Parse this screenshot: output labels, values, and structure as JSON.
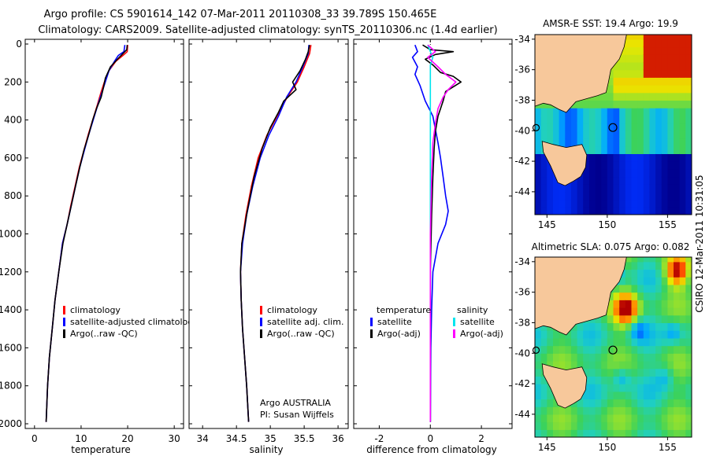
{
  "header": {
    "line1": "Argo profile: CS 5901614_142 07-Mar-2011 20110308_33 39.789S 150.465E",
    "line2": "Climatology: CARS2009. Satellite-adjusted climatology: synTS_20110306.nc (1.4d earlier)"
  },
  "side_label": "CSIRO 12-Mar-2011 10:31:05",
  "colors": {
    "climatology": "#ff0000",
    "satellite": "#0000ff",
    "argo": "#000000",
    "sat_diff": "#00e5ee",
    "argo_adj": "#ff00ff",
    "land": "#f7c89b"
  },
  "chart_data": [
    {
      "type": "line",
      "id": "temperature",
      "xlabel": "temperature",
      "xlim": [
        -2,
        32
      ],
      "ylim": [
        2050,
        0
      ],
      "xticks": [
        0,
        10,
        20,
        30
      ],
      "yticks": [
        0,
        200,
        400,
        600,
        800,
        1000,
        1200,
        1400,
        1600,
        1800,
        2000
      ],
      "legend": [
        {
          "label": "climatology",
          "color": "#ff0000"
        },
        {
          "label": "satellite-adjusted climatology",
          "color": "#0000ff"
        },
        {
          "label": "Argo(..raw -QC)",
          "color": "#000000"
        }
      ],
      "series": [
        {
          "name": "climatology",
          "color": "#ff0000",
          "points": [
            [
              20.0,
              5
            ],
            [
              19.9,
              40
            ],
            [
              19.0,
              60
            ],
            [
              17.5,
              90
            ],
            [
              16.0,
              140
            ],
            [
              15.0,
              200
            ],
            [
              14.2,
              260
            ],
            [
              13.5,
              320
            ],
            [
              12.5,
              400
            ],
            [
              11.5,
              480
            ],
            [
              10.6,
              560
            ],
            [
              9.6,
              650
            ],
            [
              8.7,
              750
            ],
            [
              7.8,
              850
            ],
            [
              7.0,
              950
            ],
            [
              6.0,
              1050
            ],
            [
              5.2,
              1200
            ],
            [
              4.4,
              1350
            ],
            [
              3.8,
              1500
            ],
            [
              3.2,
              1650
            ],
            [
              2.8,
              1800
            ],
            [
              2.5,
              1990
            ]
          ]
        },
        {
          "name": "satellite-adjusted climatology",
          "color": "#0000ff",
          "points": [
            [
              19.4,
              5
            ],
            [
              19.2,
              40
            ],
            [
              18.0,
              60
            ],
            [
              17.2,
              90
            ],
            [
              16.0,
              140
            ],
            [
              15.2,
              200
            ],
            [
              14.4,
              260
            ],
            [
              13.6,
              320
            ],
            [
              12.6,
              400
            ],
            [
              11.6,
              480
            ],
            [
              10.7,
              560
            ],
            [
              9.7,
              650
            ],
            [
              8.8,
              750
            ],
            [
              7.9,
              850
            ],
            [
              7.0,
              950
            ],
            [
              6.0,
              1050
            ],
            [
              5.2,
              1200
            ],
            [
              4.4,
              1350
            ],
            [
              3.8,
              1500
            ],
            [
              3.2,
              1650
            ],
            [
              2.8,
              1800
            ],
            [
              2.5,
              1990
            ]
          ]
        },
        {
          "name": "Argo(..raw -QC)",
          "color": "#000000",
          "points": [
            [
              19.9,
              5
            ],
            [
              19.8,
              30
            ],
            [
              19.0,
              50
            ],
            [
              17.8,
              80
            ],
            [
              16.3,
              120
            ],
            [
              15.2,
              180
            ],
            [
              14.8,
              230
            ],
            [
              14.3,
              280
            ],
            [
              13.3,
              340
            ],
            [
              12.5,
              400
            ],
            [
              11.6,
              480
            ],
            [
              10.6,
              560
            ],
            [
              9.7,
              650
            ],
            [
              8.8,
              750
            ],
            [
              7.9,
              850
            ],
            [
              7.0,
              950
            ],
            [
              6.1,
              1050
            ],
            [
              5.2,
              1200
            ],
            [
              4.4,
              1350
            ],
            [
              3.8,
              1500
            ],
            [
              3.2,
              1650
            ],
            [
              2.8,
              1800
            ],
            [
              2.5,
              1990
            ]
          ]
        }
      ]
    },
    {
      "type": "line",
      "id": "salinity",
      "xlabel": "salinity",
      "xlim": [
        33.8,
        36.15
      ],
      "ylim": [
        2050,
        0
      ],
      "xticks": [
        34,
        34.5,
        35,
        35.5,
        36
      ],
      "legend": [
        {
          "label": "climatology",
          "color": "#ff0000"
        },
        {
          "label": "satellite adj. clim.",
          "color": "#0000ff"
        },
        {
          "label": "Argo(..raw -QC)",
          "color": "#000000"
        }
      ],
      "annotation": [
        "Argo AUSTRALIA",
        "PI: Susan Wijffels"
      ],
      "series": [
        {
          "name": "climatology",
          "color": "#ff0000",
          "points": [
            [
              35.6,
              5
            ],
            [
              35.58,
              50
            ],
            [
              35.5,
              120
            ],
            [
              35.4,
              200
            ],
            [
              35.25,
              280
            ],
            [
              35.1,
              380
            ],
            [
              34.95,
              480
            ],
            [
              34.82,
              600
            ],
            [
              34.72,
              750
            ],
            [
              34.64,
              900
            ],
            [
              34.58,
              1050
            ],
            [
              34.56,
              1200
            ],
            [
              34.57,
              1350
            ],
            [
              34.59,
              1500
            ],
            [
              34.62,
              1650
            ],
            [
              34.65,
              1800
            ],
            [
              34.68,
              1990
            ]
          ]
        },
        {
          "name": "satellite adj. clim.",
          "color": "#0000ff",
          "points": [
            [
              35.57,
              5
            ],
            [
              35.56,
              50
            ],
            [
              35.48,
              120
            ],
            [
              35.38,
              200
            ],
            [
              35.24,
              280
            ],
            [
              35.12,
              380
            ],
            [
              34.98,
              480
            ],
            [
              34.85,
              600
            ],
            [
              34.74,
              750
            ],
            [
              34.65,
              900
            ],
            [
              34.59,
              1050
            ],
            [
              34.56,
              1200
            ],
            [
              34.57,
              1350
            ],
            [
              34.59,
              1500
            ],
            [
              34.62,
              1650
            ],
            [
              34.65,
              1800
            ],
            [
              34.68,
              1990
            ]
          ]
        },
        {
          "name": "Argo(..raw -QC)",
          "color": "#000000",
          "points": [
            [
              35.58,
              5
            ],
            [
              35.56,
              40
            ],
            [
              35.52,
              80
            ],
            [
              35.44,
              140
            ],
            [
              35.33,
              200
            ],
            [
              35.38,
              240
            ],
            [
              35.2,
              300
            ],
            [
              35.12,
              360
            ],
            [
              35.0,
              440
            ],
            [
              34.88,
              550
            ],
            [
              34.76,
              700
            ],
            [
              34.66,
              880
            ],
            [
              34.58,
              1050
            ],
            [
              34.56,
              1200
            ],
            [
              34.57,
              1350
            ],
            [
              34.59,
              1500
            ],
            [
              34.62,
              1650
            ],
            [
              34.65,
              1800
            ],
            [
              34.68,
              1990
            ]
          ]
        }
      ]
    },
    {
      "type": "line",
      "id": "difference",
      "xlabel": "difference from climatology",
      "xlim": [
        -3,
        3.2
      ],
      "ylim": [
        2050,
        0
      ],
      "xticks": [
        -2,
        0,
        2
      ],
      "legend_groups": [
        {
          "title": "temperature",
          "items": [
            {
              "label": "satellite",
              "color": "#0000ff"
            },
            {
              "label": "Argo(-adj)",
              "color": "#000000"
            }
          ]
        },
        {
          "title": "salinity",
          "items": [
            {
              "label": "satellite",
              "color": "#00e5ee"
            },
            {
              "label": "Argo(-adj)",
              "color": "#ff00ff"
            }
          ]
        }
      ],
      "series": [
        {
          "name": "temperature satellite",
          "color": "#0000ff",
          "points": [
            [
              -0.6,
              5
            ],
            [
              -0.5,
              40
            ],
            [
              -0.7,
              70
            ],
            [
              -0.5,
              120
            ],
            [
              -0.6,
              160
            ],
            [
              -0.4,
              220
            ],
            [
              -0.2,
              300
            ],
            [
              0.1,
              380
            ],
            [
              0.2,
              450
            ],
            [
              0.3,
              520
            ],
            [
              0.4,
              600
            ],
            [
              0.5,
              700
            ],
            [
              0.6,
              800
            ],
            [
              0.7,
              880
            ],
            [
              0.6,
              950
            ],
            [
              0.3,
              1050
            ],
            [
              0.1,
              1200
            ],
            [
              0.05,
              1400
            ],
            [
              0.02,
              1600
            ],
            [
              0.0,
              1990
            ]
          ]
        },
        {
          "name": "temperature Argo(-adj)",
          "color": "#000000",
          "points": [
            [
              -0.3,
              5
            ],
            [
              0.0,
              30
            ],
            [
              0.9,
              40
            ],
            [
              0.2,
              55
            ],
            [
              -0.2,
              80
            ],
            [
              0.1,
              110
            ],
            [
              0.4,
              150
            ],
            [
              0.9,
              170
            ],
            [
              1.2,
              200
            ],
            [
              0.6,
              250
            ],
            [
              0.5,
              300
            ],
            [
              0.3,
              380
            ],
            [
              0.2,
              460
            ],
            [
              0.15,
              550
            ],
            [
              0.1,
              700
            ],
            [
              0.05,
              900
            ],
            [
              0.0,
              1200
            ],
            [
              0.0,
              1990
            ]
          ]
        },
        {
          "name": "salinity satellite",
          "color": "#00e5ee",
          "points": [
            [
              -0.1,
              5
            ],
            [
              0.0,
              40
            ],
            [
              0.1,
              70
            ],
            [
              0.0,
              110
            ],
            [
              0.0,
              160
            ],
            [
              0.0,
              250
            ],
            [
              0.0,
              400
            ],
            [
              0.0,
              700
            ],
            [
              0.0,
              1200
            ],
            [
              0.0,
              1990
            ]
          ]
        },
        {
          "name": "salinity Argo(-adj)",
          "color": "#ff00ff",
          "points": [
            [
              -0.1,
              5
            ],
            [
              0.2,
              40
            ],
            [
              -0.1,
              70
            ],
            [
              0.3,
              120
            ],
            [
              0.6,
              160
            ],
            [
              1.0,
              200
            ],
            [
              0.7,
              240
            ],
            [
              0.5,
              280
            ],
            [
              0.3,
              340
            ],
            [
              0.2,
              420
            ],
            [
              0.1,
              520
            ],
            [
              0.05,
              700
            ],
            [
              0.0,
              1000
            ],
            [
              0.0,
              1990
            ]
          ]
        }
      ]
    },
    {
      "type": "heatmap",
      "id": "sst_map",
      "title": "AMSR-E SST: 19.4 Argo: 19.9",
      "xticks": [
        145,
        150,
        155
      ],
      "yticks": [
        -34,
        -36,
        -38,
        -40,
        -42,
        -44
      ],
      "xlim": [
        144,
        157
      ],
      "ylim": [
        -45.5,
        -33.7
      ],
      "float_position": [
        150.465,
        -39.789
      ],
      "palette": [
        "#00008f",
        "#0030ff",
        "#00aaff",
        "#20d0c0",
        "#3cd25a",
        "#90e030",
        "#e8e800",
        "#ffa000",
        "#ff4000",
        "#b00000"
      ]
    },
    {
      "type": "heatmap",
      "id": "sla_map",
      "title": "Altimetric SLA: 0.075 Argo: 0.082",
      "xticks": [
        145,
        150,
        155
      ],
      "yticks": [
        -34,
        -36,
        -38,
        -40,
        -42,
        -44
      ],
      "xlim": [
        144,
        157
      ],
      "ylim": [
        -45.5,
        -33.7
      ],
      "float_position": [
        150.465,
        -39.789
      ],
      "palette": [
        "#00008f",
        "#0030ff",
        "#00aaff",
        "#20d0c0",
        "#3cd25a",
        "#90e030",
        "#e8e800",
        "#ffa000",
        "#ff4000",
        "#b00000"
      ]
    }
  ]
}
